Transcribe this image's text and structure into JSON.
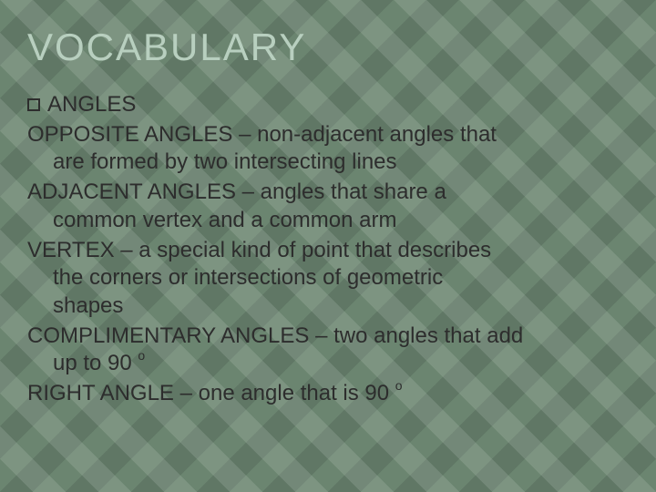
{
  "slide": {
    "title": "VOCABULARY",
    "bullet_label": "ANGLES",
    "terms": [
      {
        "name": "OPPOSITE ANGLES",
        "sep": " – ",
        "def1": "non-adjacent angles that",
        "def2": "are formed by two intersecting lines"
      },
      {
        "name": "ADJACENT ANGLES",
        "sep": " – ",
        "def1": "angles that share a",
        "def2": "common vertex and a common arm"
      },
      {
        "name": "VERTEX",
        "sep": " – ",
        "def1": "a special kind of point that describes",
        "def2": "the corners or intersections of geometric",
        "def3": "shapes"
      },
      {
        "name": "COMPLIMENTARY ANGLES",
        "sep": " – ",
        "def1": "two angles that add",
        "def2_pre": "up to 90",
        "def2_sup": "o"
      },
      {
        "name": "RIGHT ANGLE",
        "sep": " – ",
        "def1_pre": "one angle that is 90",
        "def1_sup": "o"
      }
    ],
    "colors": {
      "background": "#6b8570",
      "title": "#b8cfbf",
      "text": "#2d2d2d"
    },
    "typography": {
      "title_fontsize": 42,
      "title_letterspacing": 2,
      "body_fontsize": 24,
      "sup_fontsize": 14
    }
  }
}
